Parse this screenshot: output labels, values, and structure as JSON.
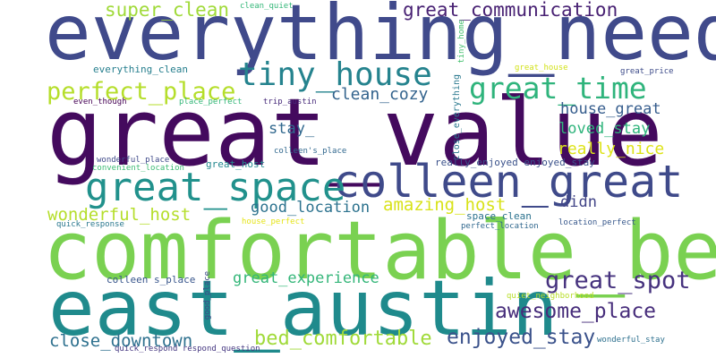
{
  "cloud": {
    "words": [
      {
        "text": "everything_need",
        "color": "#404a8b"
      },
      {
        "text": "great_value",
        "color": "#440a5e"
      },
      {
        "text": "comfortable_bed",
        "color": "#7ad151"
      },
      {
        "text": "east_austin",
        "color": "#1f8a8c"
      },
      {
        "text": "colleen_great",
        "color": "#3f4a8a"
      },
      {
        "text": "great_space",
        "color": "#21918c"
      },
      {
        "text": "tiny_house",
        "color": "#25838e"
      },
      {
        "text": "great_time",
        "color": "#2fb47c"
      },
      {
        "text": "perfect_place",
        "color": "#b5de2b"
      },
      {
        "text": "great_communication",
        "color": "#482173"
      },
      {
        "text": "super_clean",
        "color": "#a0da39"
      },
      {
        "text": "awesome_place",
        "color": "#472d7b"
      },
      {
        "text": "great_spot",
        "color": "#46327e"
      },
      {
        "text": "enjoyed_stay",
        "color": "#3b528b"
      },
      {
        "text": "close_downtown",
        "color": "#2d708e"
      },
      {
        "text": "bed_comfortable",
        "color": "#a0da39"
      },
      {
        "text": "wonderful_host",
        "color": "#b5de2b"
      },
      {
        "text": "amazing_host",
        "color": "#d8e219"
      },
      {
        "text": "good_location",
        "color": "#2c728e"
      },
      {
        "text": "great_experience",
        "color": "#34b679"
      },
      {
        "text": "clean_cozy",
        "color": "#33638d"
      },
      {
        "text": "house_great",
        "color": "#365d8d"
      },
      {
        "text": "loved_stay",
        "color": "#2fb47c"
      },
      {
        "text": "really_nice",
        "color": "#dde318"
      },
      {
        "text": "stay_",
        "color": "#31688e"
      },
      {
        "text": "didn",
        "color": "#414487"
      },
      {
        "text": "everything_clean",
        "color": "#277f8e"
      },
      {
        "text": "clean_quiet",
        "color": "#35b779"
      },
      {
        "text": "tiny_home",
        "color": "#46c06f"
      },
      {
        "text": "close_everything",
        "color": "#2a788e"
      },
      {
        "text": "great_house",
        "color": "#d2e21b"
      },
      {
        "text": "great_price",
        "color": "#3e4c8a"
      },
      {
        "text": "even_though",
        "color": "#440154"
      },
      {
        "text": "place_perfect",
        "color": "#35b779"
      },
      {
        "text": "trip_austin",
        "color": "#472a7a"
      },
      {
        "text": "colleen's_place",
        "color": "#31688e"
      },
      {
        "text": "wonderful_place",
        "color": "#3e4989"
      },
      {
        "text": "convenient_location",
        "color": "#3dbc74"
      },
      {
        "text": "great_host",
        "color": "#23888e"
      },
      {
        "text": "really_enjoyed enjoyed_stay",
        "color": "#3b528b"
      },
      {
        "text": "quick_response",
        "color": "#2a788e"
      },
      {
        "text": "house_perfect",
        "color": "#e5e419"
      },
      {
        "text": "space_clean",
        "color": "#2c728e"
      },
      {
        "text": "perfect_location",
        "color": "#31688e"
      },
      {
        "text": "location_perfect",
        "color": "#38588c"
      },
      {
        "text": "colleen s_place",
        "color": "#39568c"
      },
      {
        "text": "good_place",
        "color": "#3e4a89"
      },
      {
        "text": "quiet_neighborhood",
        "color": "#b8de29"
      },
      {
        "text": "wonderful_stay",
        "color": "#2d708e"
      },
      {
        "text": "quick_respond respond_question",
        "color": "#453781"
      }
    ]
  }
}
